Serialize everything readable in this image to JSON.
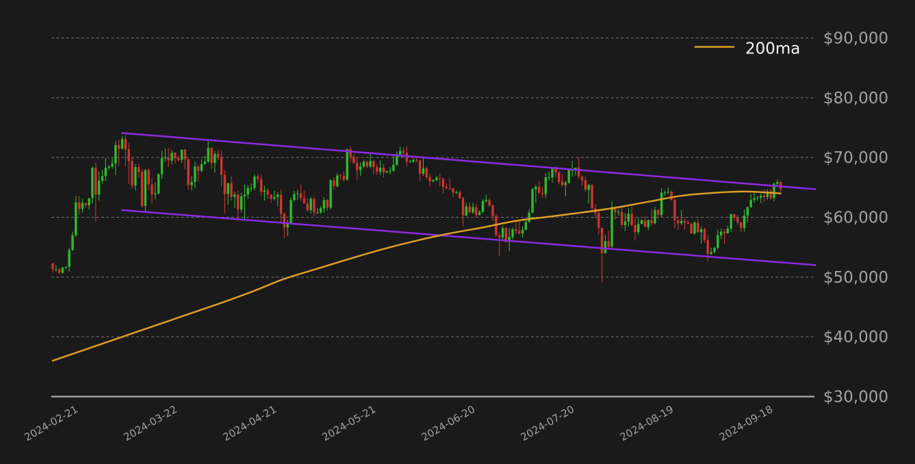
{
  "background": "#1a1a1a",
  "legend": {
    "label": "200ma",
    "line_color": "#dd9e28",
    "text_color": "#f5f5f5"
  },
  "axis": {
    "text_color": "#a2a2a2",
    "grid_color": "#d0d0d0",
    "axis_line_color": "#c2c2c2",
    "y_ticks": [
      {
        "value": 90000,
        "label": "$90,000"
      },
      {
        "value": 80000,
        "label": "$80,000"
      },
      {
        "value": 70000,
        "label": "$70,000"
      },
      {
        "value": 60000,
        "label": "$60,000"
      },
      {
        "value": 50000,
        "label": "$50,000"
      },
      {
        "value": 40000,
        "label": "$40,000"
      },
      {
        "value": 30000,
        "label": "$30,000"
      }
    ],
    "x_ticks": [
      {
        "index": 0,
        "label": "2024-02-21"
      },
      {
        "index": 30,
        "label": "2024-03-22"
      },
      {
        "index": 60,
        "label": "2024-04-21"
      },
      {
        "index": 90,
        "label": "2024-05-21"
      },
      {
        "index": 120,
        "label": "2024-06-20"
      },
      {
        "index": 150,
        "label": "2024-07-20"
      },
      {
        "index": 180,
        "label": "2024-08-19"
      },
      {
        "index": 210,
        "label": "2024-09-18"
      }
    ]
  },
  "chart_data": {
    "type": "candlestick",
    "title": "",
    "ylim": [
      30000,
      90000
    ],
    "up_color": "#2ebc2e",
    "down_color": "#cf352e",
    "candles": [
      [
        52300,
        52400,
        50700,
        51300
      ],
      [
        51300,
        52000,
        50900,
        51300
      ],
      [
        51300,
        51500,
        50500,
        50700
      ],
      [
        50700,
        51700,
        50600,
        51600
      ],
      [
        51600,
        51800,
        51300,
        51700
      ],
      [
        51700,
        54900,
        50900,
        54500
      ],
      [
        54500,
        57600,
        54400,
        57000
      ],
      [
        57000,
        63600,
        56700,
        62500
      ],
      [
        62500,
        63600,
        60400,
        61400
      ],
      [
        61400,
        63100,
        60800,
        62400
      ],
      [
        62400,
        62400,
        61600,
        62000
      ],
      [
        62000,
        63200,
        61300,
        63200
      ],
      [
        63200,
        68500,
        62300,
        68300
      ],
      [
        68300,
        69200,
        59300,
        63800
      ],
      [
        63800,
        67600,
        62800,
        66100
      ],
      [
        66100,
        67900,
        65600,
        66900
      ],
      [
        66900,
        69900,
        66100,
        68300
      ],
      [
        68300,
        68700,
        67900,
        68500
      ],
      [
        68500,
        69900,
        68100,
        69000
      ],
      [
        69000,
        72800,
        67100,
        72100
      ],
      [
        72100,
        73000,
        68600,
        71500
      ],
      [
        71500,
        73600,
        71300,
        73100
      ],
      [
        73100,
        73800,
        68600,
        71400
      ],
      [
        71400,
        72400,
        65600,
        69400
      ],
      [
        69400,
        70000,
        64800,
        65300
      ],
      [
        65300,
        68900,
        64500,
        68400
      ],
      [
        68400,
        68900,
        66600,
        67600
      ],
      [
        67600,
        68100,
        61600,
        61900
      ],
      [
        61900,
        68100,
        60800,
        67900
      ],
      [
        67900,
        68200,
        64600,
        65500
      ],
      [
        65500,
        66600,
        62300,
        63800
      ],
      [
        63800,
        65800,
        63000,
        64000
      ],
      [
        64000,
        67300,
        63800,
        67200
      ],
      [
        67200,
        71100,
        66400,
        69900
      ],
      [
        69900,
        71500,
        69300,
        70000
      ],
      [
        70000,
        71600,
        68400,
        69500
      ],
      [
        69500,
        71300,
        68900,
        70800
      ],
      [
        70800,
        70900,
        69000,
        69900
      ],
      [
        69900,
        70300,
        69300,
        69600
      ],
      [
        69600,
        71400,
        69100,
        71300
      ],
      [
        71300,
        71400,
        68100,
        69700
      ],
      [
        69700,
        69800,
        64600,
        65400
      ],
      [
        65400,
        66900,
        64500,
        65900
      ],
      [
        65900,
        69300,
        64900,
        68500
      ],
      [
        68500,
        68800,
        66000,
        67800
      ],
      [
        67800,
        69700,
        67500,
        68900
      ],
      [
        68900,
        70300,
        68800,
        69300
      ],
      [
        69300,
        72800,
        69100,
        71600
      ],
      [
        71600,
        71800,
        68200,
        69100
      ],
      [
        69100,
        71100,
        67500,
        70600
      ],
      [
        70600,
        71300,
        69600,
        70000
      ],
      [
        70000,
        71200,
        65100,
        67100
      ],
      [
        67100,
        67900,
        60700,
        63900
      ],
      [
        63900,
        65800,
        62100,
        65700
      ],
      [
        65700,
        66800,
        62800,
        63400
      ],
      [
        63400,
        64300,
        61600,
        63800
      ],
      [
        63800,
        64500,
        59700,
        61300
      ],
      [
        61300,
        64100,
        60800,
        63500
      ],
      [
        63500,
        65500,
        59600,
        63800
      ],
      [
        63800,
        65400,
        63100,
        64900
      ],
      [
        64900,
        65700,
        64300,
        64900
      ],
      [
        64900,
        67200,
        64500,
        66800
      ],
      [
        66800,
        67200,
        65800,
        66400
      ],
      [
        66400,
        67100,
        63600,
        64300
      ],
      [
        64300,
        65300,
        62800,
        64500
      ],
      [
        64500,
        64800,
        63100,
        63800
      ],
      [
        63800,
        63900,
        62400,
        63100
      ],
      [
        63100,
        64400,
        62800,
        63400
      ],
      [
        63400,
        64200,
        61800,
        63800
      ],
      [
        63800,
        64700,
        59200,
        60600
      ],
      [
        60600,
        60800,
        56500,
        58300
      ],
      [
        58300,
        59600,
        56900,
        59100
      ],
      [
        59100,
        63300,
        58800,
        62900
      ],
      [
        62900,
        64400,
        62600,
        63900
      ],
      [
        63900,
        64600,
        62900,
        64000
      ],
      [
        64000,
        65500,
        62700,
        63200
      ],
      [
        63200,
        64400,
        62300,
        62300
      ],
      [
        62300,
        63200,
        60900,
        61200
      ],
      [
        61200,
        63400,
        60600,
        63100
      ],
      [
        63100,
        63500,
        60200,
        60800
      ],
      [
        60800,
        61500,
        60500,
        60800
      ],
      [
        60800,
        61900,
        60600,
        61500
      ],
      [
        61500,
        63400,
        60800,
        62900
      ],
      [
        62900,
        63100,
        61100,
        61600
      ],
      [
        61600,
        66400,
        61300,
        66200
      ],
      [
        66200,
        66700,
        64600,
        65200
      ],
      [
        65200,
        67400,
        65000,
        67000
      ],
      [
        67000,
        67300,
        66200,
        66900
      ],
      [
        66900,
        67700,
        65900,
        66300
      ],
      [
        66300,
        71500,
        66100,
        71400
      ],
      [
        71400,
        71900,
        69200,
        70100
      ],
      [
        70100,
        70600,
        68900,
        69100
      ],
      [
        69100,
        70000,
        66300,
        67900
      ],
      [
        67900,
        69200,
        66900,
        68500
      ],
      [
        68500,
        69600,
        68200,
        69300
      ],
      [
        69300,
        69500,
        68200,
        68500
      ],
      [
        68500,
        70600,
        68200,
        69400
      ],
      [
        69400,
        69600,
        67200,
        68400
      ],
      [
        68400,
        68900,
        67100,
        67600
      ],
      [
        67600,
        69500,
        67100,
        68300
      ],
      [
        68300,
        69000,
        66700,
        67500
      ],
      [
        67500,
        67800,
        67400,
        67700
      ],
      [
        67700,
        68400,
        67200,
        67800
      ],
      [
        67800,
        70300,
        67600,
        68800
      ],
      [
        68800,
        71000,
        68600,
        70500
      ],
      [
        70500,
        71800,
        70100,
        71100
      ],
      [
        71100,
        71700,
        70200,
        70800
      ],
      [
        70800,
        71900,
        68500,
        69300
      ],
      [
        69300,
        69600,
        69100,
        69300
      ],
      [
        69300,
        69900,
        69100,
        69600
      ],
      [
        69600,
        70200,
        69200,
        69500
      ],
      [
        69500,
        69600,
        66100,
        67300
      ],
      [
        67300,
        70000,
        66900,
        68200
      ],
      [
        68200,
        68400,
        66300,
        66700
      ],
      [
        66700,
        67300,
        65100,
        66000
      ],
      [
        66000,
        66400,
        65800,
        66200
      ],
      [
        66200,
        66900,
        66000,
        66600
      ],
      [
        66600,
        67300,
        65100,
        66500
      ],
      [
        66500,
        66600,
        64000,
        65100
      ],
      [
        65100,
        65700,
        64700,
        64900
      ],
      [
        64900,
        66500,
        64500,
        64800
      ],
      [
        64800,
        65000,
        63400,
        64100
      ],
      [
        64100,
        64500,
        63900,
        64200
      ],
      [
        64200,
        64500,
        63100,
        63200
      ],
      [
        63200,
        63400,
        58500,
        60300
      ],
      [
        60300,
        62400,
        60200,
        61800
      ],
      [
        61800,
        62500,
        60700,
        60800
      ],
      [
        60800,
        62400,
        60600,
        61700
      ],
      [
        61700,
        62200,
        60000,
        60400
      ],
      [
        60400,
        61200,
        60300,
        60900
      ],
      [
        60900,
        63000,
        60700,
        62700
      ],
      [
        62700,
        63800,
        62400,
        62900
      ],
      [
        62900,
        63200,
        61700,
        62000
      ],
      [
        62000,
        62200,
        59400,
        60200
      ],
      [
        60200,
        60500,
        56800,
        57000
      ],
      [
        57000,
        57500,
        53500,
        56600
      ],
      [
        56600,
        58500,
        56000,
        58200
      ],
      [
        58200,
        58400,
        55700,
        55900
      ],
      [
        55900,
        58200,
        54300,
        56700
      ],
      [
        56700,
        58300,
        56300,
        58000
      ],
      [
        58000,
        59400,
        57200,
        57700
      ],
      [
        57700,
        59500,
        57100,
        57300
      ],
      [
        57300,
        58500,
        56600,
        57900
      ],
      [
        57900,
        59800,
        57800,
        59200
      ],
      [
        59200,
        61400,
        59200,
        60800
      ],
      [
        60800,
        64900,
        60600,
        64700
      ],
      [
        64700,
        65400,
        62400,
        65100
      ],
      [
        65100,
        66100,
        63900,
        64100
      ],
      [
        64100,
        65100,
        63200,
        63900
      ],
      [
        63900,
        67400,
        63200,
        66700
      ],
      [
        66700,
        67600,
        66200,
        66700
      ],
      [
        66700,
        68400,
        65800,
        68200
      ],
      [
        68200,
        68500,
        66600,
        67500
      ],
      [
        67500,
        67800,
        65500,
        65900
      ],
      [
        65900,
        67100,
        65100,
        65400
      ],
      [
        65400,
        66100,
        63500,
        65800
      ],
      [
        65800,
        68200,
        65600,
        67900
      ],
      [
        67900,
        69400,
        66800,
        67900
      ],
      [
        67900,
        68300,
        67000,
        68300
      ],
      [
        68300,
        70000,
        66400,
        66800
      ],
      [
        66800,
        67000,
        65300,
        66200
      ],
      [
        66200,
        66800,
        64300,
        64600
      ],
      [
        64600,
        65600,
        62300,
        65400
      ],
      [
        65400,
        65600,
        61200,
        61500
      ],
      [
        61500,
        62200,
        59800,
        60700
      ],
      [
        60700,
        61100,
        57100,
        58200
      ],
      [
        58200,
        58300,
        49100,
        54000
      ],
      [
        54000,
        57000,
        53900,
        56000
      ],
      [
        56000,
        57700,
        54600,
        55100
      ],
      [
        55100,
        62700,
        54900,
        61700
      ],
      [
        61700,
        61800,
        59600,
        60900
      ],
      [
        60900,
        61400,
        60300,
        60900
      ],
      [
        60900,
        61800,
        58300,
        58700
      ],
      [
        58700,
        60700,
        57700,
        59300
      ],
      [
        59300,
        61600,
        58400,
        60600
      ],
      [
        60600,
        61800,
        58500,
        58700
      ],
      [
        58700,
        59900,
        56100,
        57500
      ],
      [
        57500,
        59900,
        57100,
        58900
      ],
      [
        58900,
        59700,
        58800,
        59500
      ],
      [
        59500,
        60300,
        58500,
        58400
      ],
      [
        58400,
        59600,
        57800,
        59500
      ],
      [
        59500,
        61400,
        58600,
        59000
      ],
      [
        59000,
        61800,
        58800,
        61200
      ],
      [
        61200,
        61400,
        59800,
        60400
      ],
      [
        60400,
        64900,
        60000,
        64100
      ],
      [
        64100,
        64500,
        63600,
        64200
      ],
      [
        64200,
        65000,
        63800,
        64300
      ],
      [
        64300,
        64500,
        62800,
        62900
      ],
      [
        62900,
        63200,
        58100,
        59500
      ],
      [
        59500,
        60200,
        57900,
        59000
      ],
      [
        59000,
        61200,
        58700,
        59400
      ],
      [
        59400,
        59900,
        57900,
        59100
      ],
      [
        59100,
        59500,
        58800,
        58900
      ],
      [
        58900,
        59100,
        57200,
        57300
      ],
      [
        57300,
        59400,
        57100,
        59100
      ],
      [
        59100,
        59800,
        57400,
        57500
      ],
      [
        57500,
        58500,
        55600,
        58000
      ],
      [
        58000,
        58300,
        55700,
        56200
      ],
      [
        56200,
        57000,
        52600,
        53900
      ],
      [
        53900,
        54900,
        53700,
        54200
      ],
      [
        54200,
        55100,
        53900,
        54900
      ],
      [
        54900,
        58000,
        54600,
        57000
      ],
      [
        57000,
        58100,
        56400,
        57600
      ],
      [
        57600,
        58000,
        55600,
        57300
      ],
      [
        57300,
        58600,
        57300,
        58100
      ],
      [
        58100,
        60600,
        57600,
        60500
      ],
      [
        60500,
        60600,
        59400,
        60000
      ],
      [
        60000,
        60400,
        58700,
        59200
      ],
      [
        59200,
        59200,
        57500,
        58200
      ],
      [
        58200,
        61300,
        57600,
        60300
      ],
      [
        60300,
        61800,
        59200,
        61700
      ],
      [
        61700,
        63900,
        61600,
        62900
      ],
      [
        62900,
        64100,
        62400,
        63200
      ],
      [
        63200,
        63600,
        62800,
        63300
      ],
      [
        63300,
        64000,
        62400,
        63600
      ],
      [
        63600,
        64700,
        62600,
        63400
      ],
      [
        63400,
        64700,
        62900,
        64300
      ],
      [
        64300,
        64800,
        62900,
        63200
      ],
      [
        63200,
        65800,
        62700,
        65600
      ],
      [
        65600,
        66300,
        65100,
        65900
      ],
      [
        65900,
        66100,
        64300,
        64700
      ]
    ],
    "ma200": {
      "name": "200ma",
      "color": "#dd9e28",
      "points": [
        [
          0,
          36000
        ],
        [
          10,
          37900
        ],
        [
          20,
          39800
        ],
        [
          30,
          41700
        ],
        [
          40,
          43600
        ],
        [
          50,
          45500
        ],
        [
          60,
          47500
        ],
        [
          70,
          49700
        ],
        [
          80,
          51400
        ],
        [
          90,
          53100
        ],
        [
          100,
          54700
        ],
        [
          110,
          56100
        ],
        [
          120,
          57300
        ],
        [
          130,
          58300
        ],
        [
          140,
          59400
        ],
        [
          150,
          60100
        ],
        [
          160,
          60800
        ],
        [
          170,
          61600
        ],
        [
          180,
          62600
        ],
        [
          190,
          63600
        ],
        [
          200,
          64100
        ],
        [
          210,
          64300
        ],
        [
          220,
          64000
        ]
      ]
    },
    "trendlines": [
      {
        "name": "upper-channel",
        "color": "#8b2be2",
        "from": [
          21,
          74100
        ],
        "to": [
          230.5,
          64700
        ]
      },
      {
        "name": "lower-channel",
        "color": "#8b2be2",
        "from": [
          21,
          61200
        ],
        "to": [
          230.5,
          52000
        ]
      }
    ]
  }
}
